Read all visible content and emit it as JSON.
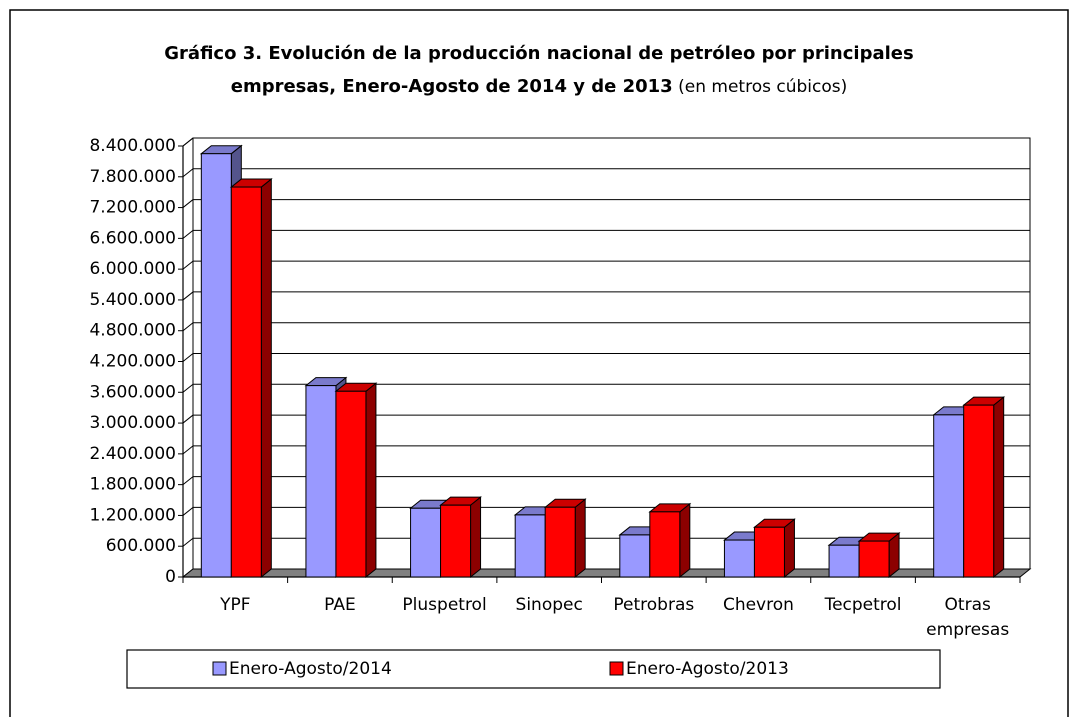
{
  "chart_data": {
    "type": "bar3d",
    "title": [
      "Gráfico 3. Evolución de la producción nacional de petróleo por principales",
      "empresas, Enero-Agosto de 2014 y de 2013"
    ],
    "subtitle": "(en metros cúbicos)",
    "categories": [
      "YPF",
      "PAE",
      "Pluspetrol",
      "Sinopec",
      "Petrobras",
      "Chevron",
      "Tecpetrol",
      "Otras empresas"
    ],
    "series": [
      {
        "name": "Enero-Agosto/2014",
        "color": "#9999ff",
        "values": [
          8250000,
          3730000,
          1340000,
          1210000,
          820000,
          720000,
          620000,
          3160000
        ]
      },
      {
        "name": "Enero-Agosto/2013",
        "color": "#ff0000",
        "values": [
          7600000,
          3620000,
          1400000,
          1360000,
          1270000,
          970000,
          700000,
          3350000
        ]
      }
    ],
    "ylim": [
      0,
      8400000
    ],
    "yticks": [
      0,
      {
        "value": 600000,
        "label": "600.000"
      },
      {
        "value": 1200000,
        "label": "1.200.000"
      },
      {
        "value": 1800000,
        "label": "1.800.000"
      },
      {
        "value": 2400000,
        "label": "2.400.000"
      },
      {
        "value": 3000000,
        "label": "3.000.000"
      },
      {
        "value": 3600000,
        "label": "3.600.000"
      },
      {
        "value": 4200000,
        "label": "4.200.000"
      },
      {
        "value": 4800000,
        "label": "4.800.000"
      },
      {
        "value": 5400000,
        "label": "5.400.000"
      },
      {
        "value": 6000000,
        "label": "6.000.000"
      },
      {
        "value": 6600000,
        "label": "6.600.000"
      },
      {
        "value": 7200000,
        "label": "7.200.000"
      },
      {
        "value": 7800000,
        "label": "7.800.000"
      },
      {
        "value": 8400000,
        "label": "8.400.000"
      }
    ],
    "grid": true,
    "legend": "bottom"
  }
}
